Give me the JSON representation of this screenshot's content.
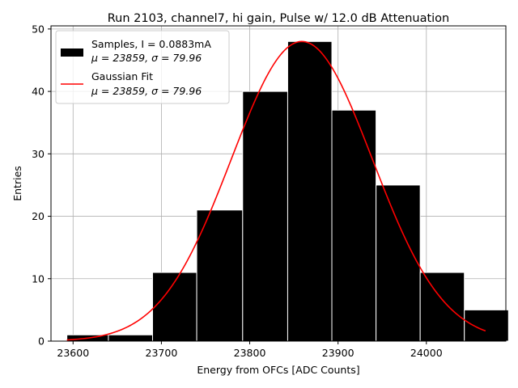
{
  "chart_data": {
    "type": "bar",
    "title": "Run 2103, channel7, hi gain, Pulse w/ 12.0 dB Attenuation",
    "xlabel": "Energy from OFCs [ADC Counts]",
    "ylabel": "Entries",
    "xlim": [
      23575,
      24090
    ],
    "ylim": [
      0,
      50.5
    ],
    "xticks": [
      23600,
      23700,
      23800,
      23900,
      24000
    ],
    "yticks": [
      0,
      10,
      20,
      30,
      40,
      50
    ],
    "grid": true,
    "legend_position": "top-left",
    "bins": [
      {
        "lo": 23593,
        "hi": 23640,
        "count": 1
      },
      {
        "lo": 23640,
        "hi": 23690,
        "count": 1
      },
      {
        "lo": 23690,
        "hi": 23740,
        "count": 11
      },
      {
        "lo": 23740,
        "hi": 23792,
        "count": 21
      },
      {
        "lo": 23792,
        "hi": 23843,
        "count": 40
      },
      {
        "lo": 23843,
        "hi": 23893,
        "count": 48
      },
      {
        "lo": 23893,
        "hi": 23943,
        "count": 37
      },
      {
        "lo": 23943,
        "hi": 23993,
        "count": 25
      },
      {
        "lo": 23993,
        "hi": 24043,
        "count": 11
      },
      {
        "lo": 24043,
        "hi": 24093,
        "count": 5
      }
    ],
    "fit": {
      "type": "gaussian",
      "mu": 23859,
      "sigma": 79.96,
      "amplitude": 48,
      "x_range": [
        23593,
        24067
      ]
    },
    "series": [
      {
        "name": "Samples, I = 0.0883mA",
        "stats": "μ = 23859, σ = 79.96",
        "color": "#000000",
        "kind": "histogram"
      },
      {
        "name": "Gaussian Fit",
        "stats": "μ = 23859, σ = 79.96",
        "color": "#ff0000",
        "kind": "line"
      }
    ]
  }
}
